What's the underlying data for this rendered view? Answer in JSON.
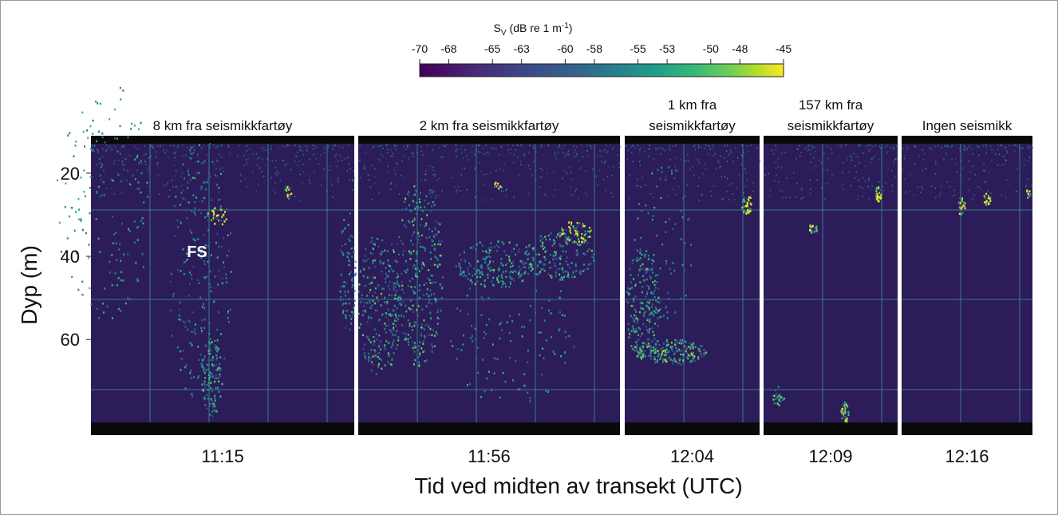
{
  "chart_data": {
    "type": "echogram",
    "colorbar": {
      "symbol": "S",
      "subscript": "V",
      "unit": "(dB re 1 m",
      "exponent": "-1",
      "close": ")",
      "lim": [
        -70,
        -45
      ],
      "ticks": [
        -70,
        -68,
        -65,
        -63,
        -60,
        -58,
        -55,
        -53,
        -50,
        -48,
        -45
      ]
    },
    "ylabel": "Dyp (m)",
    "xlabel": "Tid ved midten av transekt (UTC)",
    "ylim": [
      11,
      83
    ],
    "yticks": [
      20,
      40,
      60
    ],
    "categories": [
      "11:15",
      "11:56",
      "12:04",
      "12:09",
      "12:16"
    ],
    "panel_titles": [
      [
        "8 km fra seismikkfartøy"
      ],
      [
        "2 km fra seismikkfartøy"
      ],
      [
        "1 km fra",
        "seismikkfartøy"
      ],
      [
        "157 km fra",
        "seismikkfartøy"
      ],
      [
        "Ingen seismikk"
      ]
    ],
    "annotation": "FS"
  }
}
